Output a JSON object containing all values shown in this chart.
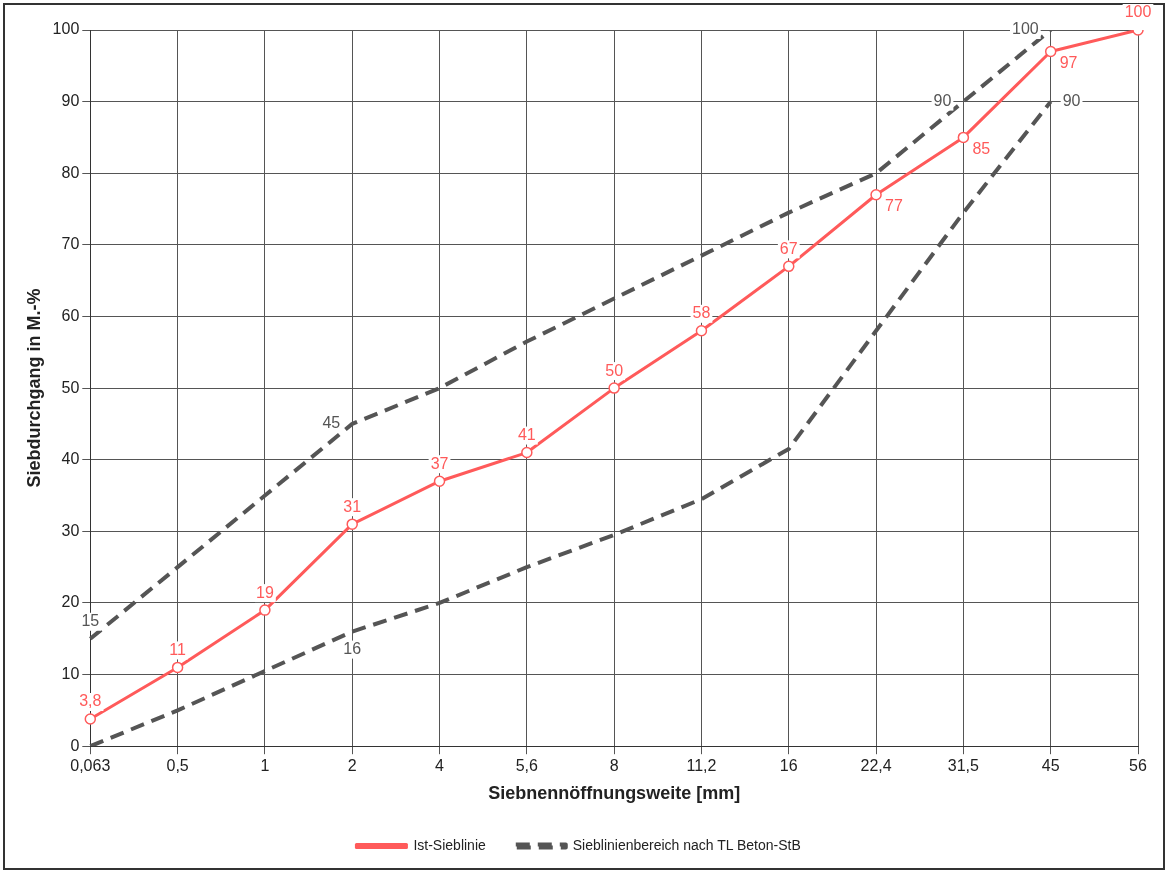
{
  "chart_data": {
    "type": "line",
    "xlabel": "Siebnennöffnungsweite [mm]",
    "ylabel": "Siebdurchgang in M.-%",
    "categories": [
      "0,063",
      "0,5",
      "1",
      "2",
      "4",
      "5,6",
      "8",
      "11,2",
      "16",
      "22,4",
      "31,5",
      "45",
      "56"
    ],
    "series": [
      {
        "name": "Ist-Sieblinie",
        "color": "#ff5a5a",
        "line_style": "solid",
        "marker": "circle",
        "values": [
          3.8,
          11,
          19,
          31,
          37,
          41,
          50,
          58,
          67,
          77,
          85,
          97,
          100
        ],
        "value_labels": [
          "3,8",
          "11",
          "19",
          "31",
          "37",
          "41",
          "50",
          "58",
          "67",
          "77",
          "85",
          "97",
          "100"
        ]
      },
      {
        "name": "Sieblinienbereich nach TL Beton-StB",
        "color": "#555555",
        "line_style": "dashed",
        "values": [
          15,
          25,
          35,
          45,
          50,
          56.5,
          62.5,
          68.5,
          74.5,
          80,
          90,
          100,
          null
        ],
        "value_labels": [
          "15",
          null,
          null,
          "45",
          null,
          null,
          null,
          null,
          null,
          null,
          "90",
          "100",
          null
        ]
      },
      {
        "color": "#555555",
        "line_style": "dashed",
        "values": [
          0,
          5,
          10.5,
          16,
          20,
          25,
          29.5,
          34.5,
          41.5,
          58,
          74.5,
          90,
          null
        ],
        "value_labels": [
          null,
          null,
          null,
          "16",
          null,
          null,
          null,
          null,
          null,
          null,
          null,
          "90",
          null
        ]
      }
    ],
    "ylim": [
      0,
      100
    ],
    "yticks": [
      0,
      10,
      20,
      30,
      40,
      50,
      60,
      70,
      80,
      90,
      100
    ],
    "grid": true,
    "legend": "bottom"
  }
}
